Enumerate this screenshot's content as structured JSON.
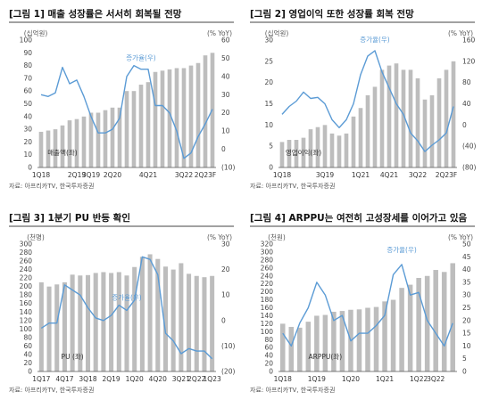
{
  "source_note": "자료: 아프리카TV, 한국투자증권",
  "chart_data": [
    {
      "type": "bar",
      "title": "[그림 1] 매출 성장률은 서서히 회복될 전망",
      "left_unit": "(십억원)",
      "right_unit": "(% YoY)",
      "ylim": [
        0,
        100
      ],
      "y2lim": [
        -10,
        60
      ],
      "left_ticks": [
        "0",
        "10",
        "20",
        "30",
        "40",
        "50",
        "60",
        "70",
        "80",
        "90",
        "100"
      ],
      "right_ticks": [
        "(10)",
        "0",
        "10",
        "20",
        "30",
        "40",
        "50",
        "60"
      ],
      "x_tick_labels": [
        "1Q18",
        "2Q19",
        "3Q19",
        "2Q20",
        "4Q21",
        "3Q22",
        "2Q23F"
      ],
      "series": [
        {
          "name": "매출액(좌)",
          "kind": "bar",
          "color": "#bdbdbd",
          "values": [
            28,
            29,
            30,
            33,
            37,
            38,
            40,
            43,
            43,
            45,
            47,
            47,
            60,
            60,
            65,
            67,
            75,
            76,
            77,
            78,
            78,
            80,
            82,
            88,
            90
          ]
        },
        {
          "name": "증가율(우)",
          "kind": "line",
          "color": "#5b9bd5",
          "values": [
            30,
            29,
            31,
            45,
            36,
            38,
            29,
            18,
            9,
            9,
            11,
            17,
            40,
            46,
            44,
            44,
            24,
            24,
            20,
            10,
            -5,
            -2,
            7,
            14,
            22
          ]
        }
      ]
    },
    {
      "type": "bar",
      "title": "[그림 2] 영업이익 또한 성장률 회복 전망",
      "left_unit": "(십억원)",
      "right_unit": "(% YoY)",
      "ylim": [
        0,
        30
      ],
      "y2lim": [
        -80,
        160
      ],
      "left_ticks": [
        "0",
        "5",
        "10",
        "15",
        "20",
        "25",
        "30"
      ],
      "right_ticks": [
        "(80)",
        "(40)",
        "0",
        "40",
        "80",
        "120",
        "160"
      ],
      "x_tick_labels": [
        "1Q18",
        "3Q19",
        "1Q21",
        "4Q21",
        "3Q22",
        "2Q23F"
      ],
      "series": [
        {
          "name": "영업이익(좌)",
          "kind": "bar",
          "color": "#bdbdbd",
          "values": [
            6,
            6.5,
            6.5,
            7,
            9,
            9.5,
            10,
            8,
            7.5,
            8,
            12,
            14,
            17,
            19,
            23,
            24,
            24.5,
            23,
            23,
            21,
            16,
            17,
            21,
            23,
            25
          ]
        },
        {
          "name": "증가율(우)",
          "kind": "line",
          "color": "#5b9bd5",
          "values": [
            20,
            35,
            45,
            62,
            50,
            52,
            40,
            10,
            -5,
            10,
            40,
            95,
            130,
            140,
            100,
            70,
            40,
            20,
            -15,
            -30,
            -50,
            -38,
            -28,
            -15,
            35
          ]
        }
      ]
    },
    {
      "type": "bar",
      "title": "[그림 3] 1분기 PU 반등 확인",
      "left_unit": "(천명)",
      "right_unit": "(% YoY)",
      "ylim": [
        0,
        300
      ],
      "y2lim": [
        -20,
        30
      ],
      "left_ticks": [
        "0",
        "20",
        "40",
        "60",
        "80",
        "100",
        "120",
        "140",
        "160",
        "180",
        "200",
        "220",
        "240",
        "260",
        "280",
        "300"
      ],
      "right_ticks": [
        "(20)",
        "(10)",
        "0",
        "10",
        "20",
        "30"
      ],
      "x_tick_labels": [
        "1Q17",
        "4Q17",
        "3Q18",
        "2Q19",
        "1Q20",
        "4Q20",
        "3Q21",
        "2Q22",
        "1Q23"
      ],
      "series": [
        {
          "name": "PU (좌)",
          "kind": "bar",
          "color": "#bdbdbd",
          "values": [
            210,
            200,
            205,
            210,
            228,
            226,
            227,
            232,
            234,
            232,
            234,
            226,
            246,
            270,
            276,
            265,
            247,
            240,
            255,
            230,
            225,
            222,
            225
          ]
        },
        {
          "name": "증가율(우)",
          "kind": "line",
          "color": "#5b9bd5",
          "values": [
            -3,
            -1,
            -1,
            14,
            12,
            10,
            5,
            1,
            0,
            2,
            6,
            4,
            8,
            25,
            24,
            18,
            -5,
            -8,
            -13,
            -11,
            -12,
            -12,
            -15
          ]
        }
      ]
    },
    {
      "type": "bar",
      "title": "[그림 4] ARPPU는 여전히 고성장세를 이어가고 있음",
      "left_unit": "(천원)",
      "right_unit": "(% YoY)",
      "ylim": [
        0,
        320
      ],
      "y2lim": [
        0,
        50
      ],
      "left_ticks": [
        "0",
        "20",
        "40",
        "60",
        "80",
        "100",
        "120",
        "140",
        "160",
        "180",
        "200",
        "220",
        "240",
        "260",
        "280",
        "300",
        "320"
      ],
      "right_ticks": [
        "0",
        "5",
        "10",
        "15",
        "20",
        "25",
        "30",
        "35",
        "40",
        "45",
        "50"
      ],
      "x_tick_labels": [
        "1Q18",
        "1Q19",
        "1Q20",
        "1Q21",
        "1Q22",
        "3Q22"
      ],
      "series": [
        {
          "name": "ARPPU(좌)",
          "kind": "bar",
          "color": "#bdbdbd",
          "values": [
            120,
            112,
            110,
            125,
            140,
            142,
            150,
            152,
            155,
            156,
            160,
            162,
            176,
            180,
            210,
            218,
            235,
            240,
            255,
            250,
            272
          ]
        },
        {
          "name": "증가율(우)",
          "kind": "line",
          "color": "#5b9bd5",
          "values": [
            15,
            10,
            19,
            25,
            35,
            30,
            20,
            22,
            12,
            15,
            15,
            18,
            22,
            38,
            42,
            30,
            31,
            20,
            15,
            10,
            19
          ]
        }
      ]
    }
  ]
}
